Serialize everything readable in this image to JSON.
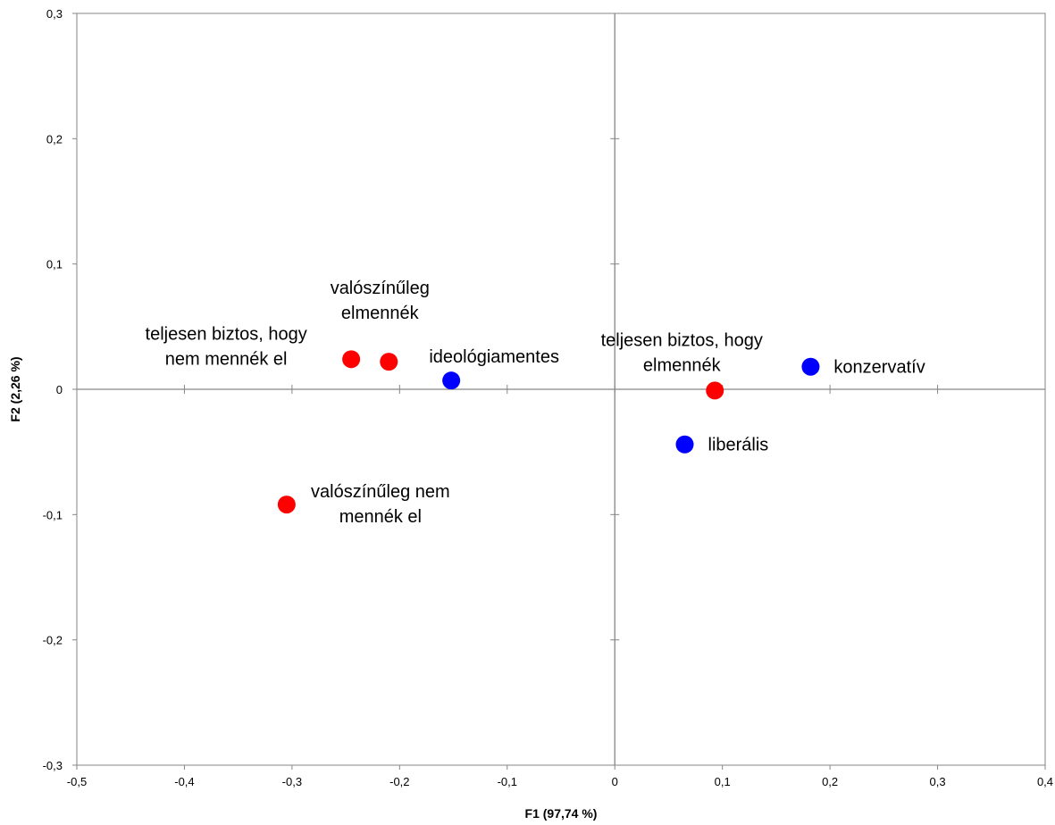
{
  "chart_data": {
    "type": "scatter",
    "title": "",
    "xlabel": "F1 (97,74 %)",
    "ylabel": "F2 (2,26 %)",
    "xlim": [
      -0.5,
      0.4
    ],
    "ylim": [
      -0.3,
      0.3
    ],
    "xticks": [
      -0.5,
      -0.4,
      -0.3,
      -0.2,
      -0.1,
      0,
      0.1,
      0.2,
      0.3,
      0.4
    ],
    "xtick_labels": [
      "-0,5",
      "-0,4",
      "-0,3",
      "-0,2",
      "-0,1",
      "0",
      "0,1",
      "0,2",
      "0,3",
      "0,4"
    ],
    "yticks": [
      -0.3,
      -0.2,
      -0.1,
      0,
      0.1,
      0.2,
      0.3
    ],
    "ytick_labels": [
      "-0,3",
      "-0,2",
      "-0,1",
      "0",
      "0,1",
      "0,2",
      "0,3"
    ],
    "grid": false,
    "legend": "none",
    "series": [
      {
        "color": "#ff0000",
        "points": [
          {
            "x": -0.245,
            "y": 0.024,
            "label": [
              "teljesen biztos, hogy",
              "nem mennék el"
            ],
            "label_pos": "left"
          },
          {
            "x": -0.21,
            "y": 0.022,
            "label": [
              "valószínűleg",
              "elmennék"
            ],
            "label_pos": "above"
          },
          {
            "x": -0.305,
            "y": -0.092,
            "label": [
              "valószínűleg nem",
              "mennék el"
            ],
            "label_pos": "right"
          },
          {
            "x": 0.093,
            "y": -0.001,
            "label": [
              "teljesen biztos, hogy",
              "elmennék"
            ],
            "label_pos": "above-left"
          }
        ]
      },
      {
        "color": "#0000ff",
        "points": [
          {
            "x": -0.152,
            "y": 0.007,
            "label": [
              "ideológiamentes"
            ],
            "label_pos": "above-right"
          },
          {
            "x": 0.182,
            "y": 0.018,
            "label": [
              "konzervatív"
            ],
            "label_pos": "right"
          },
          {
            "x": 0.065,
            "y": -0.044,
            "label": [
              "liberális"
            ],
            "label_pos": "right"
          }
        ]
      }
    ]
  }
}
